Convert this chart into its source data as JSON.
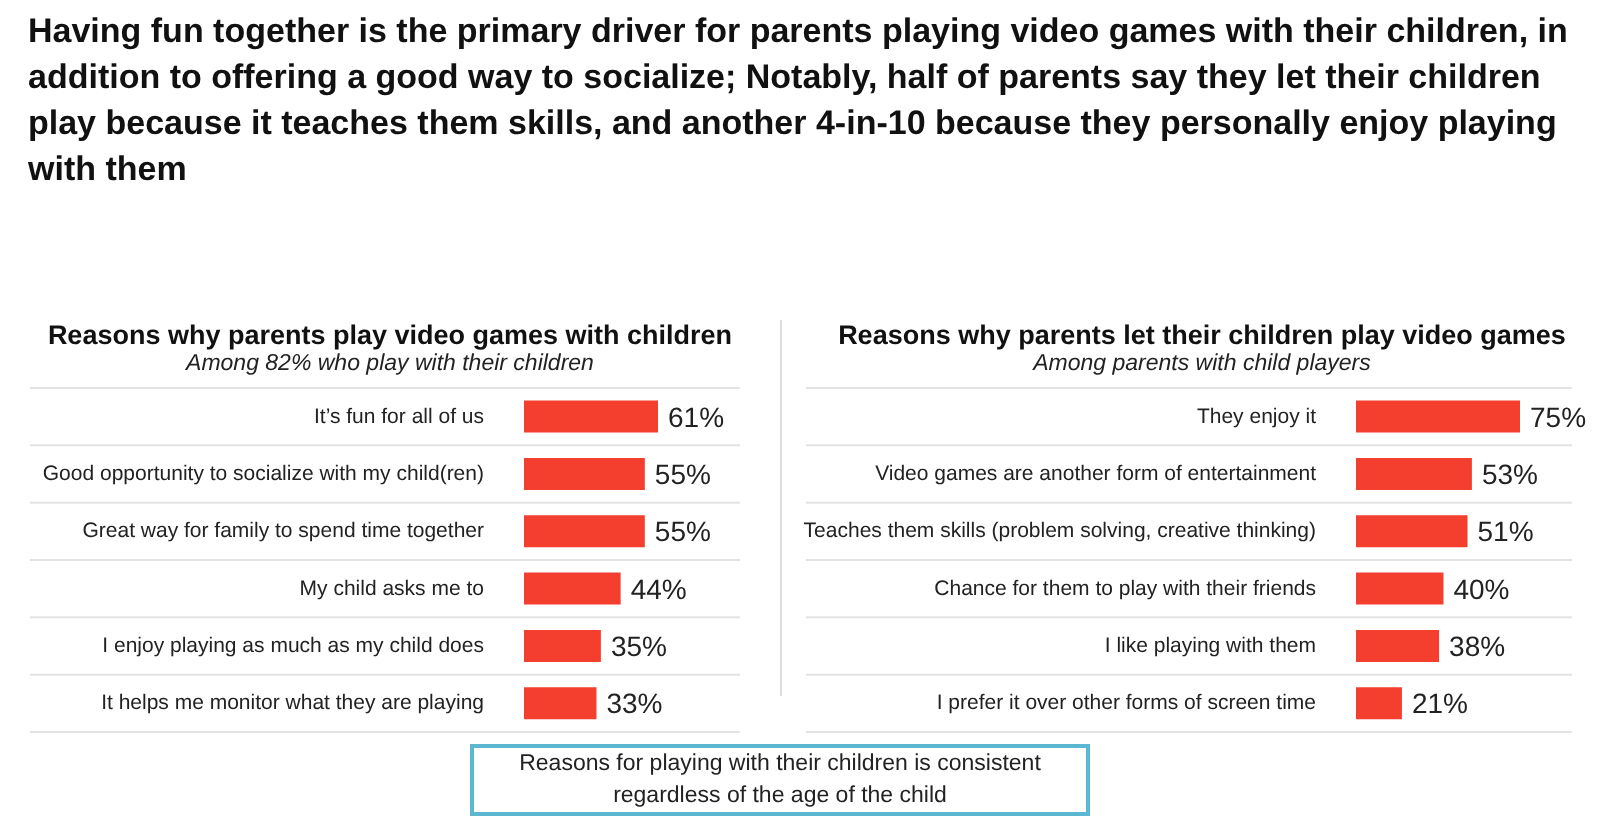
{
  "chart_data": [
    {
      "type": "bar",
      "orientation": "horizontal",
      "title": "Reasons why parents play video games with children",
      "subtitle": "Among 82% who play with their children",
      "annotations": [
        "Having fun together is the primary driver for parents playing video games with their children, in addition to offering a good way to socialize; Notably, half of parents say they let their children play because it teaches them skills, and another 4-in-10 because they personally enjoy playing with them"
      ],
      "categories": [
        "It’s fun for all of us",
        "Good opportunity to socialize with my child(ren)",
        "Great way for family to spend time together",
        "My child asks me to",
        "I enjoy playing as much as my child does",
        "It helps me monitor what they are playing"
      ],
      "values": [
        61,
        55,
        55,
        44,
        35,
        33
      ],
      "value_labels": [
        "61%",
        "55%",
        "55%",
        "44%",
        "35%",
        "33%"
      ],
      "color": "#f43f2f",
      "grid": "y",
      "legend": false
    },
    {
      "type": "bar",
      "orientation": "horizontal",
      "title": "Reasons why parents let their children play video games",
      "subtitle": "Among parents with child players",
      "annotations": [
        "Reasons for playing with their children is consistent regardless of the age of the child"
      ],
      "categories": [
        "They enjoy it",
        "Video games are another form of entertainment",
        "Teaches them skills (problem solving, creative thinking)",
        "Chance for them to play with their friends",
        "I like playing with them",
        "I prefer it over other forms of screen time"
      ],
      "values": [
        75,
        53,
        51,
        40,
        38,
        21
      ],
      "value_labels": [
        "75%",
        "53%",
        "51%",
        "40%",
        "38%",
        "21%"
      ],
      "color": "#f43f2f",
      "grid": "y",
      "legend": false
    }
  ]
}
